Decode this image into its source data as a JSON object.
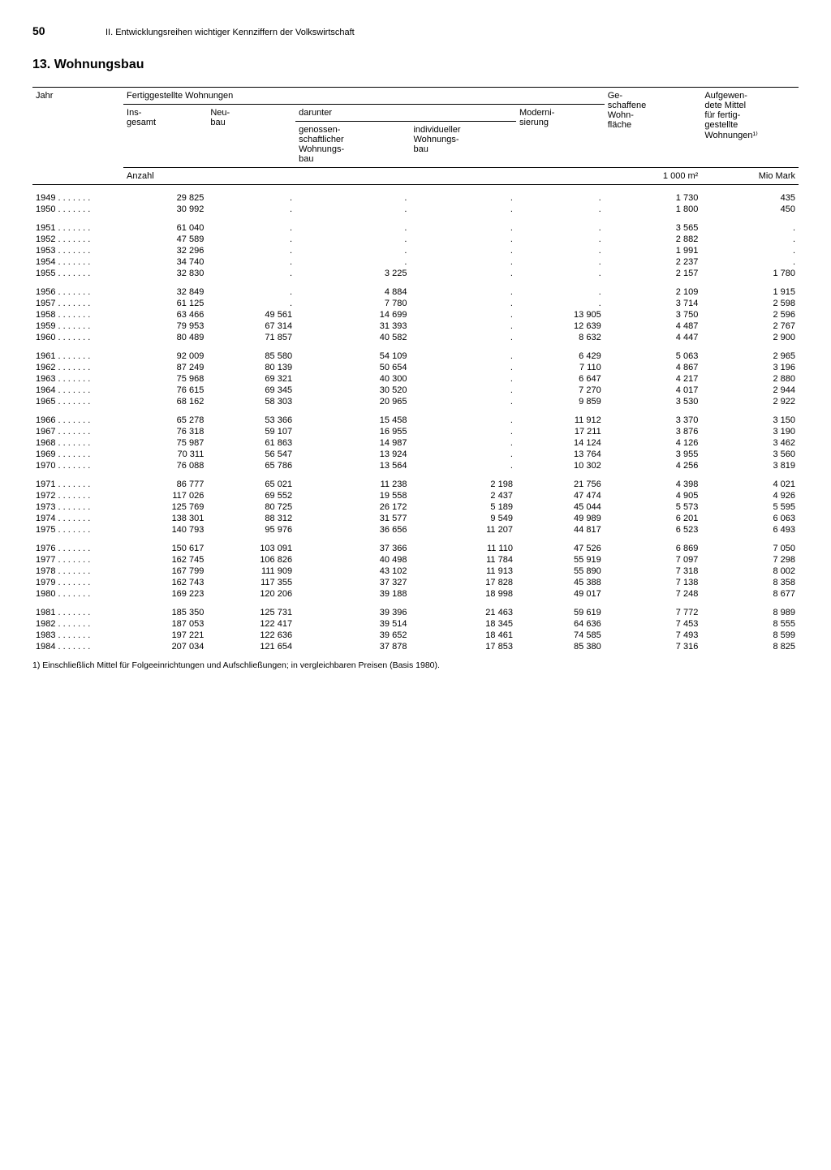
{
  "page_number": "50",
  "chapter_header": "II. Entwicklungsreihen wichtiger Kennziffern der Volkswirtschaft",
  "section_title": "13. Wohnungsbau",
  "columns": {
    "jahr": "Jahr",
    "fertig": "Fertiggestellte Wohnungen",
    "insgesamt": "Ins-\ngesamt",
    "neubau": "Neu-\nbau",
    "darunter": "darunter",
    "genossen": "genossen-\nschaftlicher\nWohnungs-\nbau",
    "individuell": "individueller\nWohnungs-\nbau",
    "moderni": "Moderni-\nsierung",
    "geschaffene": "Ge-\nschaffene\nWohn-\nfläche",
    "aufgewendete": "Aufgewen-\ndete Mittel\nfür fertig-\ngestellte\nWohnungen¹⁾"
  },
  "units": {
    "anzahl": "Anzahl",
    "flaeche": "1 000 m²",
    "mittel": "Mio Mark"
  },
  "groups": [
    [
      {
        "year": "1949",
        "ins": "29 825",
        "neu": ".",
        "gen": ".",
        "ind": ".",
        "mod": ".",
        "wohn": "1 730",
        "mit": "435"
      },
      {
        "year": "1950",
        "ins": "30 992",
        "neu": ".",
        "gen": ".",
        "ind": ".",
        "mod": ".",
        "wohn": "1 800",
        "mit": "450"
      }
    ],
    [
      {
        "year": "1951",
        "ins": "61 040",
        "neu": ".",
        "gen": ".",
        "ind": ".",
        "mod": ".",
        "wohn": "3 565",
        "mit": "."
      },
      {
        "year": "1952",
        "ins": "47 589",
        "neu": ".",
        "gen": ".",
        "ind": ".",
        "mod": ".",
        "wohn": "2 882",
        "mit": "."
      },
      {
        "year": "1953",
        "ins": "32 296",
        "neu": ".",
        "gen": ".",
        "ind": ".",
        "mod": ".",
        "wohn": "1 991",
        "mit": "."
      },
      {
        "year": "1954",
        "ins": "34 740",
        "neu": ".",
        "gen": ".",
        "ind": ".",
        "mod": ".",
        "wohn": "2 237",
        "mit": "."
      },
      {
        "year": "1955",
        "ins": "32 830",
        "neu": ".",
        "gen": "3 225",
        "ind": ".",
        "mod": ".",
        "wohn": "2 157",
        "mit": "1 780"
      }
    ],
    [
      {
        "year": "1956",
        "ins": "32 849",
        "neu": ".",
        "gen": "4 884",
        "ind": ".",
        "mod": ".",
        "wohn": "2 109",
        "mit": "1 915"
      },
      {
        "year": "1957",
        "ins": "61 125",
        "neu": ".",
        "gen": "7 780",
        "ind": ".",
        "mod": ".",
        "wohn": "3 714",
        "mit": "2 598"
      },
      {
        "year": "1958",
        "ins": "63 466",
        "neu": "49 561",
        "gen": "14 699",
        "ind": ".",
        "mod": "13 905",
        "wohn": "3 750",
        "mit": "2 596"
      },
      {
        "year": "1959",
        "ins": "79 953",
        "neu": "67 314",
        "gen": "31 393",
        "ind": ".",
        "mod": "12 639",
        "wohn": "4 487",
        "mit": "2 767"
      },
      {
        "year": "1960",
        "ins": "80 489",
        "neu": "71 857",
        "gen": "40 582",
        "ind": ".",
        "mod": "8 632",
        "wohn": "4 447",
        "mit": "2 900"
      }
    ],
    [
      {
        "year": "1961",
        "ins": "92 009",
        "neu": "85 580",
        "gen": "54 109",
        "ind": ".",
        "mod": "6 429",
        "wohn": "5 063",
        "mit": "2 965"
      },
      {
        "year": "1962",
        "ins": "87 249",
        "neu": "80 139",
        "gen": "50 654",
        "ind": ".",
        "mod": "7 110",
        "wohn": "4 867",
        "mit": "3 196"
      },
      {
        "year": "1963",
        "ins": "75 968",
        "neu": "69 321",
        "gen": "40 300",
        "ind": ".",
        "mod": "6 647",
        "wohn": "4 217",
        "mit": "2 880"
      },
      {
        "year": "1964",
        "ins": "76 615",
        "neu": "69 345",
        "gen": "30 520",
        "ind": ".",
        "mod": "7 270",
        "wohn": "4 017",
        "mit": "2 944"
      },
      {
        "year": "1965",
        "ins": "68 162",
        "neu": "58 303",
        "gen": "20 965",
        "ind": ".",
        "mod": "9 859",
        "wohn": "3 530",
        "mit": "2 922"
      }
    ],
    [
      {
        "year": "1966",
        "ins": "65 278",
        "neu": "53 366",
        "gen": "15 458",
        "ind": ".",
        "mod": "11 912",
        "wohn": "3 370",
        "mit": "3 150"
      },
      {
        "year": "1967",
        "ins": "76 318",
        "neu": "59 107",
        "gen": "16 955",
        "ind": ".",
        "mod": "17 211",
        "wohn": "3 876",
        "mit": "3 190"
      },
      {
        "year": "1968",
        "ins": "75 987",
        "neu": "61 863",
        "gen": "14 987",
        "ind": ".",
        "mod": "14 124",
        "wohn": "4 126",
        "mit": "3 462"
      },
      {
        "year": "1969",
        "ins": "70 311",
        "neu": "56 547",
        "gen": "13 924",
        "ind": ".",
        "mod": "13 764",
        "wohn": "3 955",
        "mit": "3 560"
      },
      {
        "year": "1970",
        "ins": "76 088",
        "neu": "65 786",
        "gen": "13 564",
        "ind": ".",
        "mod": "10 302",
        "wohn": "4 256",
        "mit": "3 819"
      }
    ],
    [
      {
        "year": "1971",
        "ins": "86 777",
        "neu": "65 021",
        "gen": "11 238",
        "ind": "2 198",
        "mod": "21 756",
        "wohn": "4 398",
        "mit": "4 021"
      },
      {
        "year": "1972",
        "ins": "117 026",
        "neu": "69 552",
        "gen": "19 558",
        "ind": "2 437",
        "mod": "47 474",
        "wohn": "4 905",
        "mit": "4 926"
      },
      {
        "year": "1973",
        "ins": "125 769",
        "neu": "80 725",
        "gen": "26 172",
        "ind": "5 189",
        "mod": "45 044",
        "wohn": "5 573",
        "mit": "5 595"
      },
      {
        "year": "1974",
        "ins": "138 301",
        "neu": "88 312",
        "gen": "31 577",
        "ind": "9 549",
        "mod": "49 989",
        "wohn": "6 201",
        "mit": "6 063"
      },
      {
        "year": "1975",
        "ins": "140 793",
        "neu": "95 976",
        "gen": "36 656",
        "ind": "11 207",
        "mod": "44 817",
        "wohn": "6 523",
        "mit": "6 493"
      }
    ],
    [
      {
        "year": "1976",
        "ins": "150 617",
        "neu": "103 091",
        "gen": "37 366",
        "ind": "11 110",
        "mod": "47 526",
        "wohn": "6 869",
        "mit": "7 050"
      },
      {
        "year": "1977",
        "ins": "162 745",
        "neu": "106 826",
        "gen": "40 498",
        "ind": "11 784",
        "mod": "55 919",
        "wohn": "7 097",
        "mit": "7 298"
      },
      {
        "year": "1978",
        "ins": "167 799",
        "neu": "111 909",
        "gen": "43 102",
        "ind": "11 913",
        "mod": "55 890",
        "wohn": "7 318",
        "mit": "8 002"
      },
      {
        "year": "1979",
        "ins": "162 743",
        "neu": "117 355",
        "gen": "37 327",
        "ind": "17 828",
        "mod": "45 388",
        "wohn": "7 138",
        "mit": "8 358"
      },
      {
        "year": "1980",
        "ins": "169 223",
        "neu": "120 206",
        "gen": "39 188",
        "ind": "18 998",
        "mod": "49 017",
        "wohn": "7 248",
        "mit": "8 677"
      }
    ],
    [
      {
        "year": "1981",
        "ins": "185 350",
        "neu": "125 731",
        "gen": "39 396",
        "ind": "21 463",
        "mod": "59 619",
        "wohn": "7 772",
        "mit": "8 989"
      },
      {
        "year": "1982",
        "ins": "187 053",
        "neu": "122 417",
        "gen": "39 514",
        "ind": "18 345",
        "mod": "64 636",
        "wohn": "7 453",
        "mit": "8 555"
      },
      {
        "year": "1983",
        "ins": "197 221",
        "neu": "122 636",
        "gen": "39 652",
        "ind": "18 461",
        "mod": "74 585",
        "wohn": "7 493",
        "mit": "8 599"
      },
      {
        "year": "1984",
        "ins": "207 034",
        "neu": "121 654",
        "gen": "37 878",
        "ind": "17 853",
        "mod": "85 380",
        "wohn": "7 316",
        "mit": "8 825"
      }
    ]
  ],
  "footnote": "1) Einschließlich Mittel für Folgeeinrichtungen und Aufschließungen; in vergleichbaren Preisen (Basis 1980)."
}
